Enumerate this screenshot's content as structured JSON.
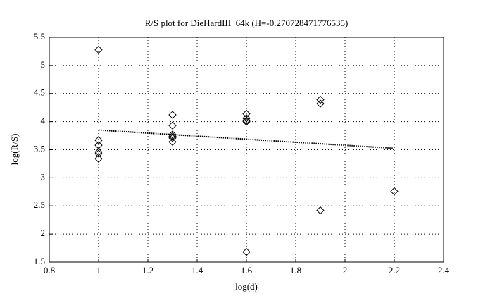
{
  "chart_data": {
    "type": "scatter",
    "title": "R/S plot for DieHardIII_64k (H=-0.270728471776535)",
    "x_label": "log(d)",
    "y_label": "log(R/S)",
    "x": [
      1,
      1,
      1,
      1,
      1,
      1,
      1.3,
      1.3,
      1.3,
      1.3,
      1.3,
      1.3,
      1.6,
      1.6,
      1.6,
      1.6,
      1.6,
      1.9,
      1.9,
      1.9,
      2.2
    ],
    "values": [
      5.28,
      3.67,
      3.58,
      3.46,
      3.43,
      3.34,
      4.12,
      3.93,
      3.77,
      3.74,
      3.71,
      3.64,
      4.14,
      4.06,
      4.02,
      4.0,
      1.68,
      4.39,
      4.32,
      2.42,
      2.76
    ],
    "color": "#000000",
    "fit_line": {
      "x": [
        1,
        2.2
      ],
      "values": [
        3.85,
        3.525
      ],
      "color": "#000000"
    },
    "xlim": [
      0.8,
      2.4
    ],
    "xticks": [
      0.8,
      1,
      1.2,
      1.4,
      1.6,
      1.8,
      2,
      2.2,
      2.4
    ],
    "ylim": [
      1.5,
      5.5
    ],
    "yticks": [
      1.5,
      2,
      2.5,
      3,
      3.5,
      4,
      4.5,
      5,
      5.5
    ],
    "grid": true
  }
}
